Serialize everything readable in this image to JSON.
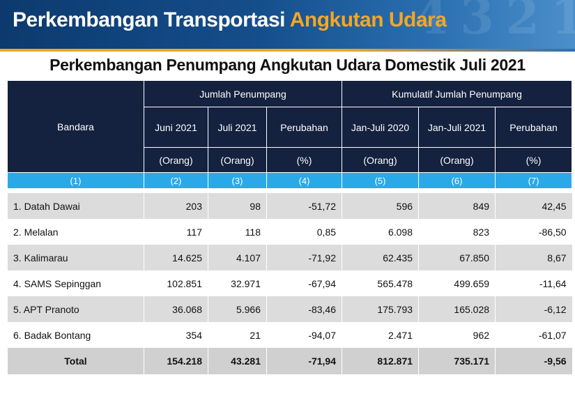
{
  "banner": {
    "title_part1": "Perkembangan Transportasi",
    "title_part2": "Angkutan Udara",
    "decoration": "4 3 2 1"
  },
  "table_title": "Perkembangan Penumpang Angkutan Udara Domestik  Juli 2021",
  "headers": {
    "bandara": "Bandara",
    "group1": "Jumlah Penumpang",
    "group2": "Kumulatif Jumlah Penumpang",
    "cols": [
      "Juni 2021",
      "Juli 2021",
      "Perubahan",
      "Jan-Juli 2020",
      "Jan-Juli 2021",
      "Perubahan"
    ],
    "units": [
      "(Orang)",
      "(Orang)",
      "(%)",
      "(Orang)",
      "(Orang)",
      "(%)"
    ],
    "numbers": [
      "(1)",
      "(2)",
      "(3)",
      "(4)",
      "(5)",
      "(6)",
      "(7)"
    ]
  },
  "rows": [
    {
      "name": "1. Datah Dawai",
      "values": [
        "203",
        "98",
        "-51,72",
        "596",
        "849",
        "42,45"
      ]
    },
    {
      "name": "2. Melalan",
      "values": [
        "117",
        "118",
        "0,85",
        "6.098",
        "823",
        "-86,50"
      ]
    },
    {
      "name": "3. Kalimarau",
      "values": [
        "14.625",
        "4.107",
        "-71,92",
        "62.435",
        "67.850",
        "8,67"
      ]
    },
    {
      "name": "4. SAMS Sepinggan",
      "values": [
        "102.851",
        "32.971",
        "-67,94",
        "565.478",
        "499.659",
        "-11,64"
      ]
    },
    {
      "name": "5. APT Pranoto",
      "values": [
        "36.068",
        "5.966",
        "-83,46",
        "175.793",
        "165.028",
        "-6,12"
      ]
    },
    {
      "name": "6. Badak Bontang",
      "values": [
        "354",
        "21",
        "-94,07",
        "2.471",
        "962",
        "-61,07"
      ]
    }
  ],
  "total": {
    "name": "Total",
    "values": [
      "154.218",
      "43.281",
      "-71,94",
      "812.871",
      "735.171",
      "-9,56"
    ]
  },
  "colors": {
    "header_dark": "#14213f",
    "header_cyan": "#2aa9e8",
    "banner_blue": "#154e8c",
    "banner_orange": "#f5a623"
  }
}
